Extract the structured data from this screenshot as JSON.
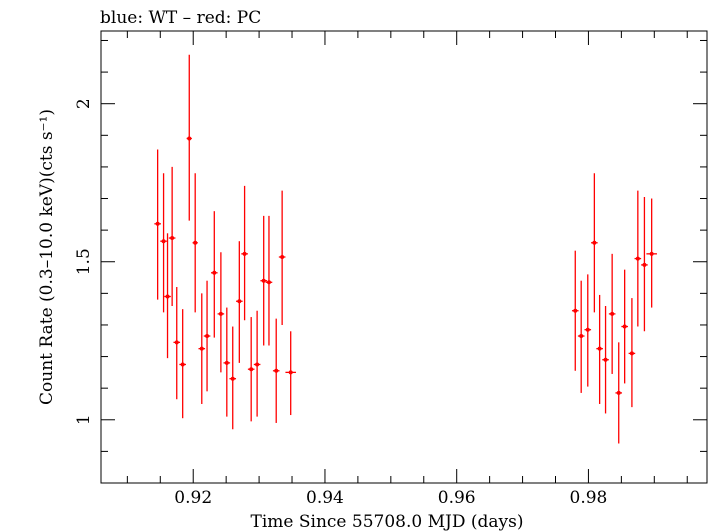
{
  "chart_data": {
    "type": "scatter",
    "title": "blue: WT – red: PC",
    "xlabel": "Time Since 55708.0 MJD (days)",
    "ylabel": "Count Rate (0.3–10.0 keV)(cts s⁻¹)",
    "xlim": [
      0.906,
      0.998
    ],
    "ylim": [
      0.8,
      2.23
    ],
    "xticks": [
      {
        "value": 0.92,
        "label": "0.92"
      },
      {
        "value": 0.94,
        "label": "0.94"
      },
      {
        "value": 0.96,
        "label": "0.96"
      },
      {
        "value": 0.98,
        "label": "0.98"
      }
    ],
    "yticks": [
      {
        "value": 1,
        "label": "1"
      },
      {
        "value": 1.5,
        "label": "1.5"
      },
      {
        "value": 2,
        "label": "2"
      }
    ],
    "grid": false,
    "series": [
      {
        "name": "PC",
        "color": "#ff0000",
        "points": [
          {
            "x": 0.9146,
            "y": 1.62,
            "ylo": 1.38,
            "yhi": 1.855,
            "xerr": 0.0005
          },
          {
            "x": 0.9155,
            "y": 1.565,
            "ylo": 1.34,
            "yhi": 1.78,
            "xerr": 0.0005
          },
          {
            "x": 0.9161,
            "y": 1.39,
            "ylo": 1.195,
            "yhi": 1.59,
            "xerr": 0.0005
          },
          {
            "x": 0.9168,
            "y": 1.575,
            "ylo": 1.36,
            "yhi": 1.8,
            "xerr": 0.0005
          },
          {
            "x": 0.9175,
            "y": 1.245,
            "ylo": 1.065,
            "yhi": 1.42,
            "xerr": 0.0005
          },
          {
            "x": 0.9184,
            "y": 1.175,
            "ylo": 1.005,
            "yhi": 1.35,
            "xerr": 0.0005
          },
          {
            "x": 0.9194,
            "y": 1.89,
            "ylo": 1.63,
            "yhi": 2.155,
            "xerr": 0.0004
          },
          {
            "x": 0.9203,
            "y": 1.56,
            "ylo": 1.34,
            "yhi": 1.78,
            "xerr": 0.0004
          },
          {
            "x": 0.9213,
            "y": 1.225,
            "ylo": 1.05,
            "yhi": 1.4,
            "xerr": 0.0005
          },
          {
            "x": 0.9221,
            "y": 1.265,
            "ylo": 1.09,
            "yhi": 1.44,
            "xerr": 0.0005
          },
          {
            "x": 0.9232,
            "y": 1.465,
            "ylo": 1.26,
            "yhi": 1.66,
            "xerr": 0.0005
          },
          {
            "x": 0.9242,
            "y": 1.335,
            "ylo": 1.15,
            "yhi": 1.53,
            "xerr": 0.0005
          },
          {
            "x": 0.9251,
            "y": 1.18,
            "ylo": 1.01,
            "yhi": 1.355,
            "xerr": 0.0005
          },
          {
            "x": 0.926,
            "y": 1.13,
            "ylo": 0.97,
            "yhi": 1.295,
            "xerr": 0.0005
          },
          {
            "x": 0.927,
            "y": 1.375,
            "ylo": 1.18,
            "yhi": 1.565,
            "xerr": 0.0005
          },
          {
            "x": 0.9278,
            "y": 1.525,
            "ylo": 1.315,
            "yhi": 1.74,
            "xerr": 0.0005
          },
          {
            "x": 0.9288,
            "y": 1.16,
            "ylo": 0.995,
            "yhi": 1.325,
            "xerr": 0.0005
          },
          {
            "x": 0.9297,
            "y": 1.175,
            "ylo": 1.01,
            "yhi": 1.345,
            "xerr": 0.0005
          },
          {
            "x": 0.9307,
            "y": 1.44,
            "ylo": 1.235,
            "yhi": 1.645,
            "xerr": 0.0005
          },
          {
            "x": 0.9315,
            "y": 1.435,
            "ylo": 1.235,
            "yhi": 1.645,
            "xerr": 0.0005
          },
          {
            "x": 0.9326,
            "y": 1.155,
            "ylo": 0.99,
            "yhi": 1.32,
            "xerr": 0.0005
          },
          {
            "x": 0.9335,
            "y": 1.515,
            "ylo": 1.3,
            "yhi": 1.725,
            "xerr": 0.0005
          },
          {
            "x": 0.9348,
            "y": 1.15,
            "ylo": 1.015,
            "yhi": 1.28,
            "xerr": 0.0008
          },
          {
            "x": 0.978,
            "y": 1.345,
            "ylo": 1.155,
            "yhi": 1.535,
            "xerr": 0.0005
          },
          {
            "x": 0.9789,
            "y": 1.265,
            "ylo": 1.085,
            "yhi": 1.44,
            "xerr": 0.0005
          },
          {
            "x": 0.9799,
            "y": 1.285,
            "ylo": 1.105,
            "yhi": 1.46,
            "xerr": 0.0005
          },
          {
            "x": 0.9809,
            "y": 1.56,
            "ylo": 1.34,
            "yhi": 1.78,
            "xerr": 0.0005
          },
          {
            "x": 0.9817,
            "y": 1.225,
            "ylo": 1.05,
            "yhi": 1.395,
            "xerr": 0.0005
          },
          {
            "x": 0.9826,
            "y": 1.19,
            "ylo": 1.02,
            "yhi": 1.36,
            "xerr": 0.0005
          },
          {
            "x": 0.9836,
            "y": 1.335,
            "ylo": 1.145,
            "yhi": 1.525,
            "xerr": 0.0005
          },
          {
            "x": 0.9846,
            "y": 1.085,
            "ylo": 0.925,
            "yhi": 1.245,
            "xerr": 0.0005
          },
          {
            "x": 0.9855,
            "y": 1.295,
            "ylo": 1.115,
            "yhi": 1.475,
            "xerr": 0.0005
          },
          {
            "x": 0.9866,
            "y": 1.21,
            "ylo": 1.04,
            "yhi": 1.385,
            "xerr": 0.0005
          },
          {
            "x": 0.9875,
            "y": 1.51,
            "ylo": 1.295,
            "yhi": 1.725,
            "xerr": 0.0005
          },
          {
            "x": 0.9885,
            "y": 1.49,
            "ylo": 1.28,
            "yhi": 1.705,
            "xerr": 0.0005
          },
          {
            "x": 0.9896,
            "y": 1.525,
            "ylo": 1.355,
            "yhi": 1.7,
            "xerr": 0.0008
          }
        ]
      }
    ]
  }
}
